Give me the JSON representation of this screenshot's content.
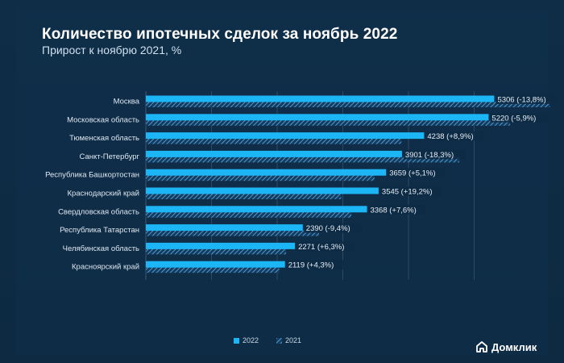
{
  "chart_data": {
    "type": "bar",
    "orientation": "horizontal",
    "title": "Количество ипотечных сделок за ноябрь 2022",
    "subtitle": "Прирост к ноябрю 2021, %",
    "categories": [
      "Москва",
      "Московская область",
      "Тюменская область",
      "Санкт-Петербург",
      "Республика Башкортостан",
      "Краснодарский край",
      "Свердловская область",
      "Республика Татарстан",
      "Челябинская область",
      "Красноярский край"
    ],
    "series": [
      {
        "name": "2022",
        "values": [
          5306,
          5220,
          4238,
          3901,
          3659,
          3545,
          3368,
          2390,
          2271,
          2119
        ]
      },
      {
        "name": "2021",
        "values": [
          6155,
          5547,
          3892,
          4774,
          3482,
          2974,
          3130,
          2638,
          2136,
          2032
        ]
      }
    ],
    "data_labels": [
      "5306 (-13,8%)",
      "5220 (-5,9%)",
      "4238 (+8,9%)",
      "3901 (-18,3%)",
      "3659 (+5,1%)",
      "3545 (+19,2%)",
      "3368 (+7,6%)",
      "2390 (-9,4%)",
      "2271 (+6,3%)",
      "2119 (+4,3%)"
    ],
    "xlim": [
      0,
      7000
    ],
    "grid": true,
    "legend_position": "bottom-center"
  },
  "legend": {
    "label_2022": "2022",
    "label_2021": "2021"
  },
  "brand": {
    "name": "Домклик",
    "icon": "house-icon"
  },
  "colors": {
    "background": "#0e2c45",
    "bar2022": "#1cb5f5",
    "bar2021": "#3f8fc8",
    "grid": "#2b4a66",
    "text": "#dfe8f1"
  }
}
